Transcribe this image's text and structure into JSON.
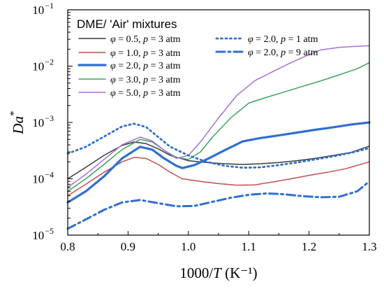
{
  "chart_data": {
    "type": "line",
    "xlabel": "1000/T (K⁻¹)",
    "ylabel": "Da*",
    "xlim": [
      0.8,
      1.3
    ],
    "ylim": [
      1e-05,
      0.1
    ],
    "yscale": "log",
    "xticks": [
      "0.8",
      "0.9",
      "1.0",
      "1.1",
      "1.2",
      "1.3"
    ],
    "yticks": [
      {
        "base": "10",
        "exp": "−5"
      },
      {
        "base": "10",
        "exp": "−4"
      },
      {
        "base": "10",
        "exp": "−3"
      },
      {
        "base": "10",
        "exp": "−2"
      },
      {
        "base": "10",
        "exp": "−1"
      }
    ],
    "legend_title": "DME/ 'Air' mixtures",
    "legend_placement": "top",
    "grid": false,
    "series": [
      {
        "name": "φ = 0.5, p = 3 atm",
        "color": "#3a3a3a",
        "style": "solid",
        "width": 1.5,
        "points": [
          [
            0.8,
            0.0001
          ],
          [
            0.83,
            0.00016
          ],
          [
            0.86,
            0.00026
          ],
          [
            0.89,
            0.00039
          ],
          [
            0.91,
            0.00045
          ],
          [
            0.93,
            0.00042
          ],
          [
            0.95,
            0.00034
          ],
          [
            0.97,
            0.00026
          ],
          [
            1.0,
            0.00021
          ],
          [
            1.03,
            0.000195
          ],
          [
            1.06,
            0.000185
          ],
          [
            1.09,
            0.00018
          ],
          [
            1.12,
            0.000185
          ],
          [
            1.15,
            0.000195
          ],
          [
            1.18,
            0.00021
          ],
          [
            1.21,
            0.00023
          ],
          [
            1.24,
            0.00026
          ],
          [
            1.27,
            0.000295
          ],
          [
            1.3,
            0.00038
          ]
        ]
      },
      {
        "name": "φ = 1.0, p = 3 atm",
        "color": "#c0504d",
        "style": "solid",
        "width": 1.5,
        "points": [
          [
            0.8,
            5e-05
          ],
          [
            0.83,
            8e-05
          ],
          [
            0.86,
            0.00013
          ],
          [
            0.89,
            0.0002
          ],
          [
            0.91,
            0.00024
          ],
          [
            0.93,
            0.00023
          ],
          [
            0.95,
            0.00018
          ],
          [
            0.97,
            0.00013
          ],
          [
            0.99,
            0.0001
          ],
          [
            1.02,
            9e-05
          ],
          [
            1.05,
            8.2e-05
          ],
          [
            1.08,
            7.7e-05
          ],
          [
            1.11,
            7.8e-05
          ],
          [
            1.14,
            8.8e-05
          ],
          [
            1.17,
            0.0001
          ],
          [
            1.2,
            0.000115
          ],
          [
            1.23,
            0.00013
          ],
          [
            1.26,
            0.00015
          ],
          [
            1.3,
            0.0002
          ]
        ]
      },
      {
        "name": "φ = 2.0, p = 3 atm",
        "color": "#2f6fd1",
        "style": "solid",
        "width": 3.2,
        "points": [
          [
            0.8,
            3.8e-05
          ],
          [
            0.83,
            6e-05
          ],
          [
            0.86,
            0.00011
          ],
          [
            0.89,
            0.00023
          ],
          [
            0.92,
            0.00037
          ],
          [
            0.94,
            0.00033
          ],
          [
            0.96,
            0.00023
          ],
          [
            0.98,
            0.00017
          ],
          [
            0.99,
            0.000155
          ],
          [
            1.01,
            0.000175
          ],
          [
            1.03,
            0.00022
          ],
          [
            1.06,
            0.00032
          ],
          [
            1.09,
            0.00046
          ],
          [
            1.12,
            0.00053
          ],
          [
            1.15,
            0.00059
          ],
          [
            1.18,
            0.00066
          ],
          [
            1.21,
            0.00074
          ],
          [
            1.24,
            0.00082
          ],
          [
            1.27,
            0.00092
          ],
          [
            1.3,
            0.001
          ]
        ]
      },
      {
        "name": "φ = 3.0, p = 3 atm",
        "color": "#3aa55d",
        "style": "solid",
        "width": 1.5,
        "points": [
          [
            0.8,
            6e-05
          ],
          [
            0.83,
            0.0001
          ],
          [
            0.86,
            0.00018
          ],
          [
            0.89,
            0.00033
          ],
          [
            0.92,
            0.0005
          ],
          [
            0.94,
            0.00045
          ],
          [
            0.96,
            0.00032
          ],
          [
            0.98,
            0.00024
          ],
          [
            1.0,
            0.00022
          ],
          [
            1.02,
            0.0003
          ],
          [
            1.04,
            0.00055
          ],
          [
            1.07,
            0.0012
          ],
          [
            1.1,
            0.0022
          ],
          [
            1.13,
            0.0028
          ],
          [
            1.16,
            0.0035
          ],
          [
            1.19,
            0.0044
          ],
          [
            1.22,
            0.0055
          ],
          [
            1.25,
            0.007
          ],
          [
            1.28,
            0.009
          ],
          [
            1.3,
            0.0115
          ]
        ]
      },
      {
        "name": "φ = 5.0, p = 3 atm",
        "color": "#a86fd8",
        "style": "solid",
        "width": 1.5,
        "points": [
          [
            0.8,
            7e-05
          ],
          [
            0.83,
            0.00012
          ],
          [
            0.86,
            0.00022
          ],
          [
            0.89,
            0.0004
          ],
          [
            0.92,
            0.00055
          ],
          [
            0.94,
            0.00047
          ],
          [
            0.96,
            0.00032
          ],
          [
            0.98,
            0.00023
          ],
          [
            1.0,
            0.00026
          ],
          [
            1.02,
            0.00045
          ],
          [
            1.05,
            0.0012
          ],
          [
            1.08,
            0.003
          ],
          [
            1.11,
            0.0055
          ],
          [
            1.14,
            0.008
          ],
          [
            1.17,
            0.0115
          ],
          [
            1.2,
            0.016
          ],
          [
            1.22,
            0.0195
          ],
          [
            1.25,
            0.0215
          ],
          [
            1.28,
            0.0225
          ],
          [
            1.3,
            0.023
          ]
        ]
      },
      {
        "name": "φ = 2.0, p = 1 atm",
        "color": "#2f6fd1",
        "style": "dotted",
        "width": 2.8,
        "points": [
          [
            0.8,
            0.00028
          ],
          [
            0.83,
            0.00037
          ],
          [
            0.86,
            0.00056
          ],
          [
            0.89,
            0.00085
          ],
          [
            0.91,
            0.00095
          ],
          [
            0.93,
            0.00083
          ],
          [
            0.95,
            0.00055
          ],
          [
            0.97,
            0.00037
          ],
          [
            1.0,
            0.00026
          ],
          [
            1.03,
            0.0002
          ],
          [
            1.06,
            0.00017
          ],
          [
            1.09,
            0.000157
          ],
          [
            1.12,
            0.00016
          ],
          [
            1.15,
            0.000175
          ],
          [
            1.18,
            0.000195
          ],
          [
            1.21,
            0.00022
          ],
          [
            1.24,
            0.00025
          ],
          [
            1.27,
            0.00029
          ],
          [
            1.3,
            0.00035
          ]
        ]
      },
      {
        "name": "φ = 2.0, p = 9 atm",
        "color": "#2f6fd1",
        "style": "dashdot",
        "width": 3.0,
        "points": [
          [
            0.8,
            1.3e-05
          ],
          [
            0.83,
            1.9e-05
          ],
          [
            0.86,
            2.8e-05
          ],
          [
            0.89,
            3.8e-05
          ],
          [
            0.92,
            4.2e-05
          ],
          [
            0.95,
            3.7e-05
          ],
          [
            0.98,
            3.25e-05
          ],
          [
            1.01,
            3.3e-05
          ],
          [
            1.04,
            3.9e-05
          ],
          [
            1.07,
            4.6e-05
          ],
          [
            1.1,
            5.2e-05
          ],
          [
            1.13,
            5.5e-05
          ],
          [
            1.16,
            5.3e-05
          ],
          [
            1.19,
            4.9e-05
          ],
          [
            1.22,
            4.7e-05
          ],
          [
            1.25,
            4.8e-05
          ],
          [
            1.28,
            6e-05
          ],
          [
            1.3,
            9e-05
          ]
        ]
      }
    ]
  }
}
